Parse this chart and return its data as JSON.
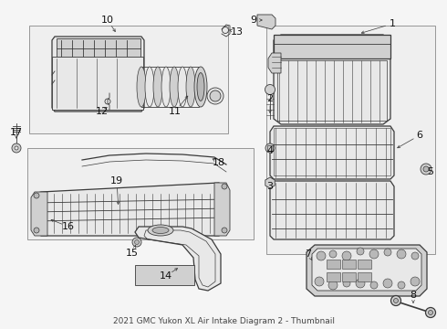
{
  "title": "2021 GMC Yukon XL Air Intake Diagram 2 - Thumbnail",
  "bg_color": "#f5f5f5",
  "line_color": "#3a3a3a",
  "light_fill": "#e8e8e8",
  "mid_fill": "#d0d0d0",
  "dark_fill": "#b8b8b8",
  "box_fill": "#efefef",
  "label_color": "#111111",
  "font_size": 8,
  "font_size_small": 6.5
}
